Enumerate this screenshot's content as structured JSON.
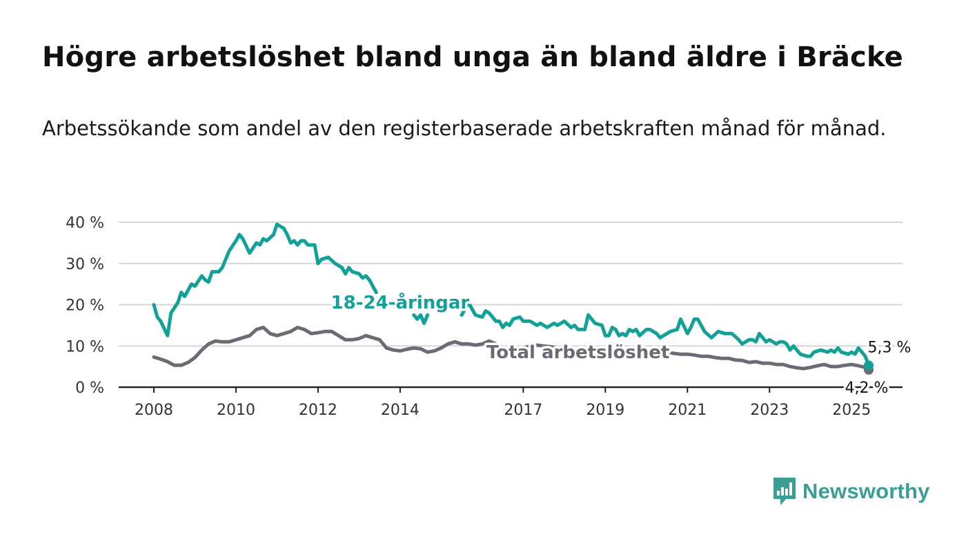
{
  "title": "Högre arbetslöshet bland unga än bland äldre i Bräcke",
  "subtitle": "Arbetssökande som andel av den registerbaserade arbetskraften månad för månad.",
  "brand": {
    "name": "Newsworthy",
    "icon": "newsworthy-logo-icon",
    "color": "#3a9e97"
  },
  "chart_data": {
    "type": "line",
    "title": "Högre arbetslöshet bland unga än bland äldre i Bräcke",
    "subtitle": "Arbetssökande som andel av den registerbaserade arbetskraften månad för månad.",
    "xlabel": "",
    "ylabel": "",
    "xlim": [
      "2008-01",
      "2025-06"
    ],
    "ylim": [
      0,
      40
    ],
    "y_ticks": [
      0,
      10,
      20,
      30,
      40
    ],
    "y_tick_labels": [
      "0 %",
      "10 %",
      "20 %",
      "30 %",
      "40 %"
    ],
    "x_ticks": [
      "2008-01",
      "2010-01",
      "2012-01",
      "2014-01",
      "2017-01",
      "2019-01",
      "2021-01",
      "2023-01",
      "2025-01"
    ],
    "x_tick_labels": [
      "2008",
      "2010",
      "2012",
      "2014",
      "2017",
      "2019",
      "2021",
      "2023",
      "2025"
    ],
    "grid": true,
    "legend": "direct labels on lines",
    "series": [
      {
        "name": "18-24-åringar",
        "color": "#12a197",
        "label_position": "2014-01",
        "end_label": "5,3 %",
        "points": [
          [
            "2008-01",
            20.0
          ],
          [
            "2008-02",
            17.0
          ],
          [
            "2008-03",
            16.0
          ],
          [
            "2008-05",
            12.5
          ],
          [
            "2008-06",
            18.0
          ],
          [
            "2008-08",
            20.5
          ],
          [
            "2008-09",
            23.0
          ],
          [
            "2008-10",
            22.0
          ],
          [
            "2008-12",
            25.0
          ],
          [
            "2009-01",
            24.5
          ],
          [
            "2009-03",
            27.0
          ],
          [
            "2009-04",
            26.0
          ],
          [
            "2009-05",
            25.5
          ],
          [
            "2009-06",
            28.0
          ],
          [
            "2009-08",
            28.0
          ],
          [
            "2009-09",
            29.0
          ],
          [
            "2009-11",
            33.0
          ],
          [
            "2010-01",
            35.5
          ],
          [
            "2010-02",
            37.0
          ],
          [
            "2010-03",
            36.0
          ],
          [
            "2010-05",
            32.5
          ],
          [
            "2010-07",
            35.0
          ],
          [
            "2010-08",
            34.5
          ],
          [
            "2010-09",
            36.0
          ],
          [
            "2010-10",
            35.5
          ],
          [
            "2010-12",
            37.0
          ],
          [
            "2011-01",
            39.5
          ],
          [
            "2011-03",
            38.5
          ],
          [
            "2011-04",
            37.0
          ],
          [
            "2011-05",
            35.0
          ],
          [
            "2011-06",
            35.5
          ],
          [
            "2011-07",
            34.5
          ],
          [
            "2011-08",
            35.5
          ],
          [
            "2011-09",
            35.5
          ],
          [
            "2011-10",
            34.5
          ],
          [
            "2011-12",
            34.5
          ],
          [
            "2012-01",
            30.0
          ],
          [
            "2012-02",
            31.0
          ],
          [
            "2012-04",
            31.5
          ],
          [
            "2012-06",
            30.0
          ],
          [
            "2012-08",
            29.0
          ],
          [
            "2012-09",
            27.5
          ],
          [
            "2012-10",
            29.0
          ],
          [
            "2012-11",
            28.0
          ],
          [
            "2013-01",
            27.5
          ],
          [
            "2013-02",
            26.5
          ],
          [
            "2013-03",
            27.0
          ],
          [
            "2013-04",
            26.0
          ],
          [
            "2013-06",
            23.0
          ],
          null,
          [
            "2014-05",
            17.5
          ],
          [
            "2014-06",
            16.5
          ],
          [
            "2014-07",
            17.5
          ],
          [
            "2014-08",
            15.5
          ],
          [
            "2014-09",
            17.5
          ],
          null,
          [
            "2015-07",
            17.5
          ],
          [
            "2015-09",
            20.5
          ],
          [
            "2015-11",
            17.5
          ],
          [
            "2016-01",
            17.0
          ],
          [
            "2016-02",
            18.5
          ],
          [
            "2016-03",
            18.0
          ],
          [
            "2016-05",
            16.0
          ],
          [
            "2016-06",
            16.0
          ],
          [
            "2016-07",
            14.5
          ],
          [
            "2016-08",
            15.5
          ],
          [
            "2016-09",
            15.0
          ],
          [
            "2016-10",
            16.5
          ],
          [
            "2016-12",
            17.0
          ],
          [
            "2017-01",
            16.0
          ],
          [
            "2017-03",
            16.0
          ],
          [
            "2017-05",
            15.0
          ],
          [
            "2017-06",
            15.5
          ],
          [
            "2017-08",
            14.5
          ],
          [
            "2017-09",
            15.0
          ],
          [
            "2017-10",
            15.5
          ],
          [
            "2017-11",
            15.0
          ],
          [
            "2018-01",
            16.0
          ],
          [
            "2018-03",
            14.5
          ],
          [
            "2018-04",
            15.0
          ],
          [
            "2018-05",
            14.0
          ],
          [
            "2018-07",
            14.0
          ],
          [
            "2018-08",
            17.5
          ],
          [
            "2018-10",
            15.5
          ],
          [
            "2018-12",
            15.0
          ],
          [
            "2019-01",
            12.5
          ],
          [
            "2019-02",
            12.5
          ],
          [
            "2019-03",
            14.5
          ],
          [
            "2019-04",
            14.0
          ],
          [
            "2019-05",
            12.5
          ],
          [
            "2019-06",
            13.0
          ],
          [
            "2019-07",
            12.5
          ],
          [
            "2019-08",
            14.0
          ],
          [
            "2019-09",
            13.5
          ],
          [
            "2019-10",
            14.0
          ],
          [
            "2019-11",
            12.5
          ],
          [
            "2020-01",
            14.0
          ],
          [
            "2020-02",
            14.0
          ],
          [
            "2020-04",
            13.0
          ],
          [
            "2020-05",
            12.0
          ],
          [
            "2020-06",
            12.5
          ],
          [
            "2020-08",
            13.5
          ],
          [
            "2020-10",
            14.0
          ],
          [
            "2020-11",
            16.5
          ],
          [
            "2021-01",
            13.0
          ],
          [
            "2021-02",
            14.5
          ],
          [
            "2021-03",
            16.5
          ],
          [
            "2021-04",
            16.5
          ],
          [
            "2021-06",
            13.5
          ],
          [
            "2021-08",
            12.0
          ],
          [
            "2021-10",
            13.5
          ],
          [
            "2021-12",
            13.0
          ],
          [
            "2022-02",
            13.0
          ],
          [
            "2022-04",
            11.5
          ],
          [
            "2022-05",
            10.5
          ],
          [
            "2022-06",
            11.0
          ],
          [
            "2022-07",
            11.5
          ],
          [
            "2022-08",
            11.5
          ],
          [
            "2022-09",
            11.0
          ],
          [
            "2022-10",
            13.0
          ],
          [
            "2022-12",
            11.0
          ],
          [
            "2023-01",
            11.5
          ],
          [
            "2023-02",
            11.0
          ],
          [
            "2023-03",
            10.5
          ],
          [
            "2023-04",
            11.0
          ],
          [
            "2023-05",
            11.0
          ],
          [
            "2023-06",
            10.5
          ],
          [
            "2023-07",
            9.0
          ],
          [
            "2023-08",
            10.0
          ],
          [
            "2023-09",
            9.0
          ],
          [
            "2023-10",
            8.0
          ],
          [
            "2023-12",
            7.5
          ],
          [
            "2024-01",
            7.5
          ],
          [
            "2024-02",
            8.5
          ],
          [
            "2024-04",
            9.0
          ],
          [
            "2024-06",
            8.5
          ],
          [
            "2024-07",
            9.0
          ],
          [
            "2024-08",
            8.5
          ],
          [
            "2024-09",
            9.5
          ],
          [
            "2024-10",
            8.5
          ],
          [
            "2024-12",
            8.0
          ],
          [
            "2025-01",
            8.5
          ],
          [
            "2025-02",
            8.0
          ],
          [
            "2025-03",
            9.5
          ],
          [
            "2025-04",
            8.5
          ],
          [
            "2025-05",
            7.5
          ],
          [
            "2025-06",
            5.3
          ]
        ]
      },
      {
        "name": "Total arbetslöshet",
        "color": "#6b6b73",
        "label_position": "2018-05",
        "end_label": "4,2 %",
        "points": [
          [
            "2008-01",
            7.3
          ],
          [
            "2008-03",
            6.8
          ],
          [
            "2008-05",
            6.2
          ],
          [
            "2008-07",
            5.3
          ],
          [
            "2008-09",
            5.3
          ],
          [
            "2008-11",
            6.0
          ],
          [
            "2009-01",
            7.2
          ],
          [
            "2009-03",
            9.0
          ],
          [
            "2009-05",
            10.5
          ],
          [
            "2009-07",
            11.2
          ],
          [
            "2009-09",
            11.0
          ],
          [
            "2009-11",
            11.0
          ],
          [
            "2010-01",
            11.5
          ],
          [
            "2010-03",
            12.0
          ],
          [
            "2010-05",
            12.5
          ],
          [
            "2010-07",
            14.0
          ],
          [
            "2010-09",
            14.5
          ],
          [
            "2010-11",
            13.0
          ],
          [
            "2011-01",
            12.5
          ],
          [
            "2011-03",
            13.0
          ],
          [
            "2011-05",
            13.5
          ],
          [
            "2011-07",
            14.5
          ],
          [
            "2011-09",
            14.0
          ],
          [
            "2011-11",
            13.0
          ],
          [
            "2012-01",
            13.2
          ],
          [
            "2012-03",
            13.5
          ],
          [
            "2012-05",
            13.5
          ],
          [
            "2012-07",
            12.5
          ],
          [
            "2012-09",
            11.5
          ],
          [
            "2012-11",
            11.5
          ],
          [
            "2013-01",
            11.8
          ],
          [
            "2013-03",
            12.5
          ],
          [
            "2013-05",
            12.0
          ],
          [
            "2013-07",
            11.5
          ],
          [
            "2013-09",
            9.5
          ],
          [
            "2013-11",
            9.0
          ],
          [
            "2014-01",
            8.8
          ],
          [
            "2014-03",
            9.2
          ],
          [
            "2014-05",
            9.5
          ],
          [
            "2014-07",
            9.3
          ],
          [
            "2014-09",
            8.5
          ],
          [
            "2014-11",
            8.8
          ],
          [
            "2015-01",
            9.5
          ],
          [
            "2015-03",
            10.5
          ],
          [
            "2015-05",
            11.0
          ],
          [
            "2015-07",
            10.5
          ],
          [
            "2015-09",
            10.5
          ],
          [
            "2015-11",
            10.2
          ],
          [
            "2016-01",
            10.5
          ],
          [
            "2016-03",
            11.2
          ],
          [
            "2016-05",
            10.5
          ],
          [
            "2016-07",
            9.2
          ],
          [
            "2016-09",
            8.8
          ],
          [
            "2016-11",
            9.0
          ],
          [
            "2017-01",
            9.5
          ],
          [
            "2017-03",
            10.0
          ],
          [
            "2017-05",
            10.2
          ],
          [
            "2017-07",
            10.0
          ],
          [
            "2017-09",
            9.8
          ],
          [
            "2017-11",
            9.5
          ],
          [
            "2018-01",
            9.0
          ],
          [
            "2018-03",
            8.8
          ],
          [
            "2018-05",
            8.5
          ],
          [
            "2018-07",
            8.5
          ],
          [
            "2018-09",
            8.3
          ],
          [
            "2018-11",
            8.5
          ],
          [
            "2019-01",
            8.5
          ],
          [
            "2019-03",
            8.5
          ],
          [
            "2019-05",
            8.3
          ],
          [
            "2019-07",
            8.0
          ],
          [
            "2019-09",
            8.0
          ],
          [
            "2019-11",
            8.0
          ],
          [
            "2020-01",
            8.2
          ],
          [
            "2020-03",
            8.5
          ],
          [
            "2020-05",
            8.8
          ],
          [
            "2020-07",
            8.5
          ],
          [
            "2020-09",
            8.2
          ],
          [
            "2020-11",
            8.0
          ],
          [
            "2021-01",
            8.0
          ],
          [
            "2021-03",
            7.8
          ],
          [
            "2021-05",
            7.5
          ],
          [
            "2021-07",
            7.5
          ],
          [
            "2021-09",
            7.2
          ],
          [
            "2021-11",
            7.0
          ],
          [
            "2022-01",
            7.0
          ],
          [
            "2022-03",
            6.6
          ],
          [
            "2022-05",
            6.5
          ],
          [
            "2022-07",
            6.0
          ],
          [
            "2022-09",
            6.2
          ],
          [
            "2022-11",
            5.8
          ],
          [
            "2023-01",
            5.8
          ],
          [
            "2023-03",
            5.5
          ],
          [
            "2023-05",
            5.5
          ],
          [
            "2023-07",
            5.0
          ],
          [
            "2023-09",
            4.7
          ],
          [
            "2023-11",
            4.5
          ],
          [
            "2024-01",
            4.8
          ],
          [
            "2024-03",
            5.2
          ],
          [
            "2024-05",
            5.5
          ],
          [
            "2024-07",
            5.0
          ],
          [
            "2024-09",
            5.0
          ],
          [
            "2024-11",
            5.3
          ],
          [
            "2025-01",
            5.5
          ],
          [
            "2025-03",
            5.2
          ],
          [
            "2025-05",
            4.8
          ],
          [
            "2025-06",
            4.2
          ]
        ]
      }
    ]
  }
}
